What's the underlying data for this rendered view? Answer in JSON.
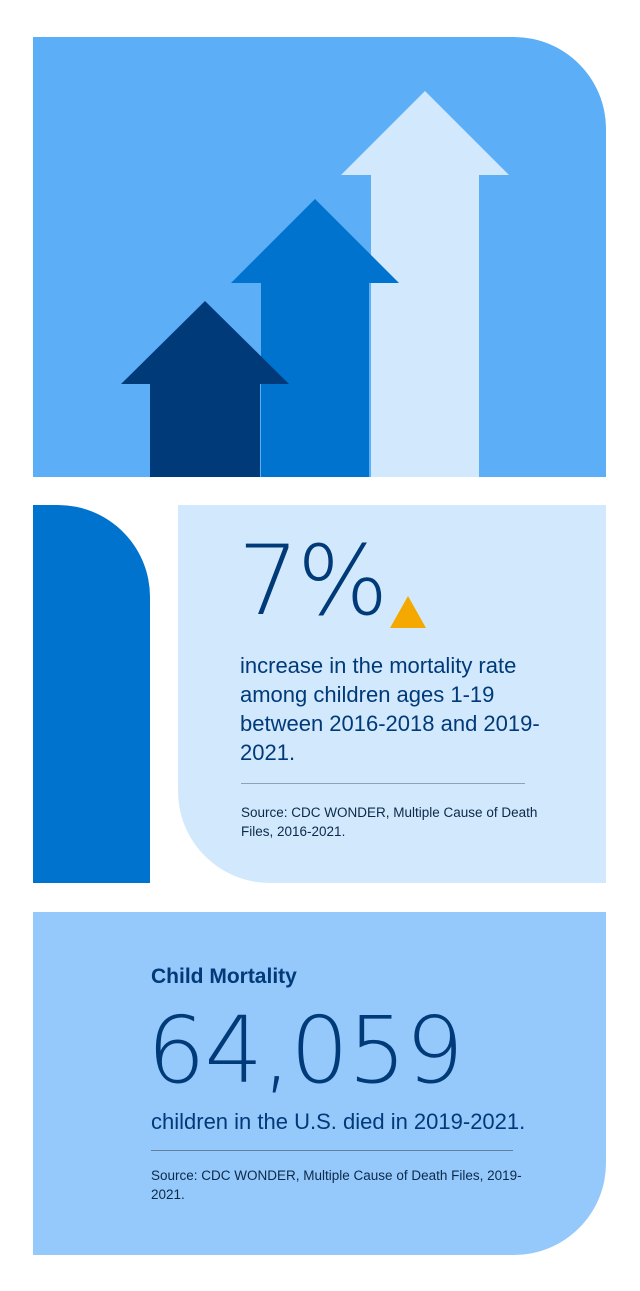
{
  "hero": {
    "colors": {
      "background": "#5caef7",
      "arrow_dark": "#003a78",
      "arrow_mid": "#0073cf",
      "arrow_light": "#d2e8fc"
    },
    "icons": [
      "arrow-up-dark-icon",
      "arrow-up-mid-icon",
      "arrow-up-light-icon"
    ]
  },
  "stat_card": {
    "percent": "7%",
    "trend_icon": "up-triangle-icon",
    "trend_color": "#f5a800",
    "description": "increase in the mortality rate among children ages 1-19 between 2016-2018 and 2019-2021.",
    "source": "Source: CDC WONDER, Multiple Cause of Death Files, 2016-2021."
  },
  "bottom_card": {
    "title": "Child Mortality",
    "number": "64,059",
    "description": "children in the U.S. died in 2019-2021.",
    "source": "Source: CDC WONDER, Multiple Cause of Death Files, 2019-2021."
  },
  "colors": {
    "text_primary": "#003a78",
    "side_bar": "#0073cf",
    "stat_card_bg": "#d2e8fc",
    "bottom_card_bg": "#95c8fb"
  }
}
